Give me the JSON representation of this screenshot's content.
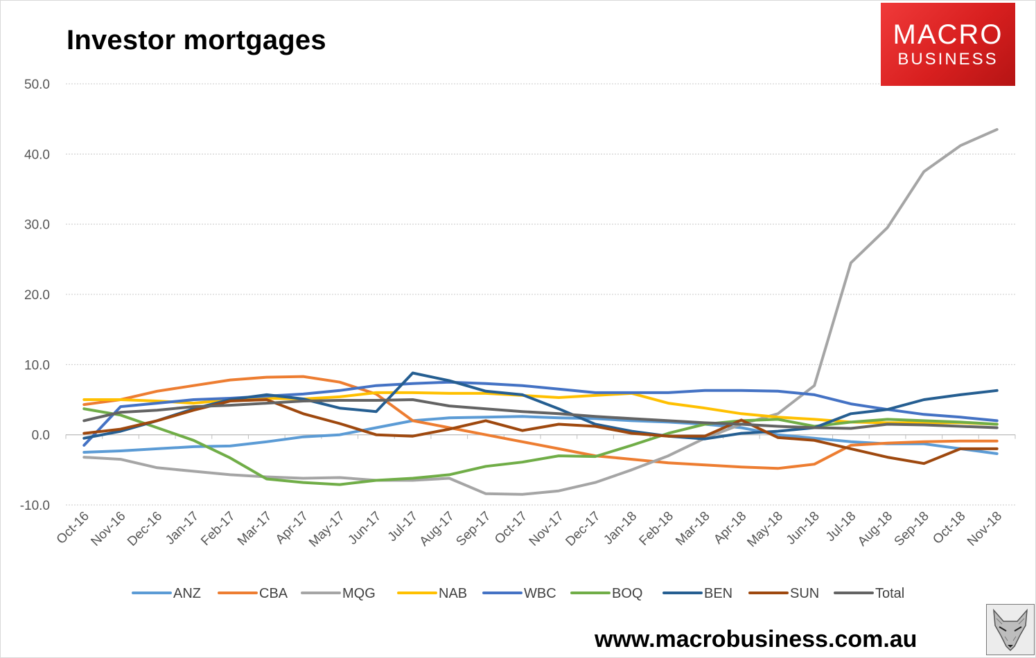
{
  "title": "Investor mortgages",
  "logo": {
    "line1": "MACRO",
    "line2": "BUSINESS"
  },
  "website": "www.macrobusiness.com.au",
  "colors": {
    "ANZ": "#5b9bd5",
    "CBA": "#ed7d31",
    "MQG": "#a5a5a5",
    "NAB": "#ffc000",
    "WBC": "#4472c4",
    "BOQ": "#70ad47",
    "BEN": "#255e91",
    "SUN": "#9e480e",
    "Total": "#636363",
    "logo_red": "#e02828"
  },
  "chart_data": {
    "type": "line",
    "title": "Investor mortgages",
    "xlabel": "",
    "ylabel": "",
    "ylim": [
      -10,
      50
    ],
    "yticks": [
      -10,
      0,
      10,
      20,
      30,
      40,
      50
    ],
    "ytick_labels": [
      "-10.0",
      "0.0",
      "10.0",
      "20.0",
      "30.0",
      "40.0",
      "50.0"
    ],
    "categories": [
      "Oct-16",
      "Nov-16",
      "Dec-16",
      "Jan-17",
      "Feb-17",
      "Mar-17",
      "Apr-17",
      "May-17",
      "Jun-17",
      "Jul-17",
      "Aug-17",
      "Sep-17",
      "Oct-17",
      "Nov-17",
      "Dec-17",
      "Jan-18",
      "Feb-18",
      "Mar-18",
      "Apr-18",
      "May-18",
      "Jun-18",
      "Jul-18",
      "Aug-18",
      "Sep-18",
      "Oct-18",
      "Nov-18"
    ],
    "grid": true,
    "legend_position": "bottom",
    "series": [
      {
        "name": "ANZ",
        "values": [
          -2.5,
          -2.3,
          -2.0,
          -1.7,
          -1.6,
          -1.0,
          -0.3,
          0.0,
          1.0,
          2.0,
          2.4,
          2.5,
          2.6,
          2.4,
          2.3,
          2.0,
          1.8,
          1.5,
          1.0,
          0.0,
          -0.5,
          -1.0,
          -1.3,
          -1.3,
          -2.0,
          -2.7
        ]
      },
      {
        "name": "CBA",
        "values": [
          4.3,
          5.0,
          6.2,
          7.0,
          7.8,
          8.2,
          8.3,
          7.5,
          5.8,
          2.0,
          1.0,
          0.0,
          -1.0,
          -2.0,
          -3.0,
          -3.5,
          -4.0,
          -4.3,
          -4.6,
          -4.8,
          -4.2,
          -1.5,
          -1.2,
          -1.0,
          -0.9,
          -0.9
        ]
      },
      {
        "name": "MQG",
        "values": [
          -3.2,
          -3.5,
          -4.7,
          -5.2,
          -5.7,
          -6.0,
          -6.2,
          -6.1,
          -6.5,
          -6.5,
          -6.2,
          -8.4,
          -8.5,
          -8.0,
          -6.8,
          -5.0,
          -3.0,
          -0.5,
          1.5,
          3.0,
          7.0,
          24.5,
          29.5,
          37.5,
          41.2,
          43.5
        ]
      },
      {
        "name": "NAB",
        "values": [
          5.0,
          5.0,
          4.8,
          4.5,
          5.0,
          5.2,
          5.1,
          5.4,
          6.0,
          6.0,
          5.9,
          5.9,
          5.6,
          5.3,
          5.6,
          5.9,
          4.5,
          3.8,
          3.0,
          2.5,
          2.2,
          1.8,
          1.7,
          1.7,
          1.7,
          1.5
        ]
      },
      {
        "name": "WBC",
        "values": [
          -1.5,
          4.0,
          4.5,
          5.0,
          5.2,
          5.5,
          5.8,
          6.3,
          7.0,
          7.3,
          7.5,
          7.3,
          7.0,
          6.5,
          6.0,
          6.0,
          6.0,
          6.3,
          6.3,
          6.2,
          5.7,
          4.4,
          3.6,
          2.9,
          2.5,
          2.0
        ]
      },
      {
        "name": "BOQ",
        "values": [
          3.7,
          2.8,
          1.0,
          -0.8,
          -3.3,
          -6.3,
          -6.8,
          -7.1,
          -6.5,
          -6.2,
          -5.7,
          -4.5,
          -3.9,
          -3.0,
          -3.1,
          -1.5,
          0.2,
          1.5,
          2.0,
          2.2,
          1.2,
          1.8,
          2.2,
          2.0,
          1.8,
          1.5
        ]
      },
      {
        "name": "BEN",
        "values": [
          -0.5,
          0.5,
          2.0,
          3.7,
          5.0,
          5.7,
          5.1,
          3.8,
          3.3,
          8.8,
          7.7,
          6.2,
          5.7,
          3.7,
          1.5,
          0.5,
          -0.2,
          -0.6,
          0.2,
          0.5,
          1.0,
          3.0,
          3.6,
          5.0,
          5.7,
          6.3
        ]
      },
      {
        "name": "SUN",
        "values": [
          0.2,
          0.8,
          2.0,
          3.5,
          4.8,
          5.0,
          3.0,
          1.6,
          0.0,
          -0.2,
          0.8,
          2.0,
          0.6,
          1.5,
          1.2,
          0.2,
          -0.2,
          -0.2,
          2.1,
          -0.4,
          -0.8,
          -2.0,
          -3.2,
          -4.1,
          -2.0,
          -2.0
        ]
      },
      {
        "name": "Total",
        "values": [
          2.0,
          3.2,
          3.5,
          4.0,
          4.2,
          4.5,
          4.8,
          4.9,
          4.9,
          5.0,
          4.1,
          3.7,
          3.3,
          3.0,
          2.6,
          2.3,
          2.0,
          1.7,
          1.5,
          1.2,
          1.0,
          0.9,
          1.5,
          1.4,
          1.2,
          1.0
        ]
      }
    ]
  }
}
